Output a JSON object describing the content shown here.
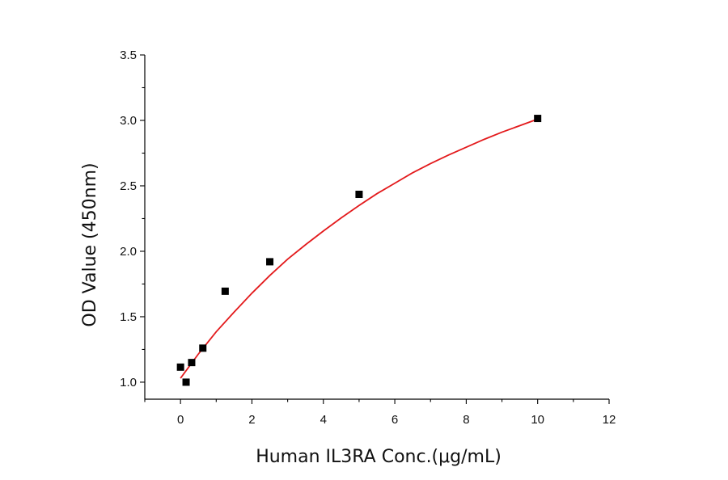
{
  "chart_data": {
    "type": "scatter",
    "xlabel": "Human IL3RA Conc.(μg/mL)",
    "ylabel": "OD Value (450nm)",
    "xlim": [
      -1,
      12
    ],
    "ylim": [
      0.87,
      3.5
    ],
    "x_ticks": [
      0,
      2,
      4,
      6,
      8,
      10,
      12
    ],
    "y_ticks": [
      1.0,
      1.5,
      2.0,
      2.5,
      3.0,
      3.5
    ],
    "x_tick_labels": [
      "0",
      "2",
      "4",
      "6",
      "8",
      "10",
      "12"
    ],
    "y_tick_labels": [
      "1.0",
      "1.5",
      "2.0",
      "2.5",
      "3.0",
      "3.5"
    ],
    "grid": false,
    "series": [
      {
        "marker": "square",
        "color": "#000000",
        "x": [
          0,
          0.156,
          0.3125,
          0.625,
          1.25,
          2.5,
          5,
          10
        ],
        "y": [
          1.115,
          1.0,
          1.15,
          1.26,
          1.695,
          1.92,
          2.435,
          3.015
        ]
      }
    ],
    "fit": {
      "color": "#e31a1c",
      "x": [
        0,
        0.5,
        1,
        1.5,
        2,
        2.5,
        3,
        3.5,
        4,
        4.5,
        5,
        5.5,
        6,
        6.5,
        7,
        7.5,
        8,
        8.5,
        9,
        9.5,
        10
      ],
      "y": [
        1.03,
        1.215,
        1.385,
        1.535,
        1.68,
        1.815,
        1.94,
        2.05,
        2.155,
        2.255,
        2.35,
        2.44,
        2.52,
        2.6,
        2.67,
        2.735,
        2.795,
        2.855,
        2.91,
        2.96,
        3.01
      ]
    }
  }
}
